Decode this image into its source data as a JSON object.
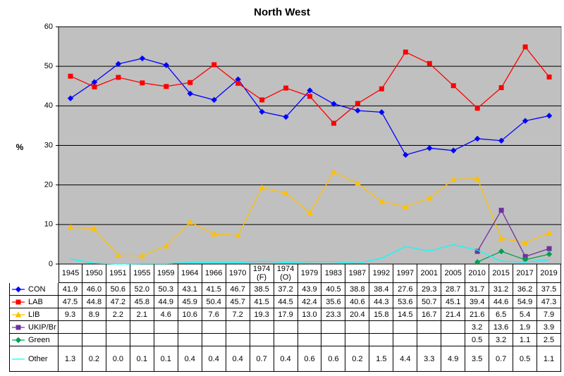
{
  "chart_data": {
    "type": "line",
    "title": "North West",
    "y_label": "%",
    "categories": [
      "1945",
      "1950",
      "1951",
      "1955",
      "1959",
      "1964",
      "1966",
      "1970",
      "1974\n(F)",
      "1974\n(O)",
      "1979",
      "1983",
      "1987",
      "1992",
      "1997",
      "2001",
      "2005",
      "2010",
      "2015",
      "2017",
      "2019"
    ],
    "ylim": [
      0,
      60
    ],
    "yticks": [
      0,
      10,
      20,
      30,
      40,
      50,
      60
    ],
    "grid": true,
    "background": "#c0c0c0",
    "series": [
      {
        "name": "CON",
        "color": "#0000ff",
        "marker": "diamond",
        "values": [
          41.9,
          46.0,
          50.6,
          52.0,
          50.3,
          43.1,
          41.5,
          46.7,
          38.5,
          37.2,
          43.9,
          40.5,
          38.8,
          38.4,
          27.6,
          29.3,
          28.7,
          31.7,
          31.2,
          36.2,
          37.5
        ],
        "value_labels": [
          "41.9",
          "46.0",
          "50.6",
          "52.0",
          "50.3",
          "43.1",
          "41.5",
          "46.7",
          "38.5",
          "37.2",
          "43.9",
          "40.5",
          "38.8",
          "38.4",
          "27.6",
          "29.3",
          "28.7",
          "31.7",
          "31.2",
          "36.2",
          "37.5"
        ]
      },
      {
        "name": "LAB",
        "color": "#ff0000",
        "marker": "square",
        "values": [
          47.5,
          44.8,
          47.2,
          45.8,
          44.9,
          45.9,
          50.4,
          45.7,
          41.5,
          44.5,
          42.4,
          35.6,
          40.6,
          44.3,
          53.6,
          50.7,
          45.1,
          39.4,
          44.6,
          54.9,
          47.3
        ],
        "value_labels": [
          "47.5",
          "44.8",
          "47.2",
          "45.8",
          "44.9",
          "45.9",
          "50.4",
          "45.7",
          "41.5",
          "44.5",
          "42.4",
          "35.6",
          "40.6",
          "44.3",
          "53.6",
          "50.7",
          "45.1",
          "39.4",
          "44.6",
          "54.9",
          "47.3"
        ]
      },
      {
        "name": "LIB",
        "color": "#ffc000",
        "marker": "triangle",
        "values": [
          9.3,
          8.9,
          2.2,
          2.1,
          4.6,
          10.6,
          7.6,
          7.2,
          19.3,
          17.9,
          13.0,
          23.3,
          20.4,
          15.8,
          14.5,
          16.7,
          21.4,
          21.6,
          6.5,
          5.4,
          7.9
        ],
        "value_labels": [
          "9.3",
          "8.9",
          "2.2",
          "2.1",
          "4.6",
          "10.6",
          "7.6",
          "7.2",
          "19.3",
          "17.9",
          "13.0",
          "23.3",
          "20.4",
          "15.8",
          "14.5",
          "16.7",
          "21.4",
          "21.6",
          "6.5",
          "5.4",
          "7.9"
        ]
      },
      {
        "name": "UKIP/Br",
        "color": "#7030a0",
        "marker": "square",
        "values": [
          null,
          null,
          null,
          null,
          null,
          null,
          null,
          null,
          null,
          null,
          null,
          null,
          null,
          null,
          null,
          null,
          null,
          3.2,
          13.6,
          1.9,
          3.9
        ],
        "value_labels": [
          null,
          null,
          null,
          null,
          null,
          null,
          null,
          null,
          null,
          null,
          null,
          null,
          null,
          null,
          null,
          null,
          null,
          "3.2",
          "13.6",
          "1.9",
          "3.9"
        ]
      },
      {
        "name": "Green",
        "color": "#00a050",
        "marker": "diamond",
        "values": [
          null,
          null,
          null,
          null,
          null,
          null,
          null,
          null,
          null,
          null,
          null,
          null,
          null,
          null,
          null,
          null,
          null,
          0.5,
          3.2,
          1.1,
          2.5
        ],
        "value_labels": [
          null,
          null,
          null,
          null,
          null,
          null,
          null,
          null,
          null,
          null,
          null,
          null,
          null,
          null,
          null,
          null,
          null,
          "0.5",
          "3.2",
          "1.1",
          "2.5"
        ]
      },
      {
        "name": "Other",
        "color": "#00ffff",
        "marker": "none",
        "values": [
          1.3,
          0.2,
          0.0,
          0.1,
          0.1,
          0.4,
          0.4,
          0.4,
          0.7,
          0.4,
          0.6,
          0.6,
          0.2,
          1.5,
          4.4,
          3.3,
          4.9,
          3.5,
          0.7,
          0.5,
          1.1
        ],
        "value_labels": [
          "1.3",
          "0.2",
          "0.0",
          "0.1",
          "0.1",
          "0.4",
          "0.4",
          "0.4",
          "0.7",
          "0.4",
          "0.6",
          "0.6",
          "0.2",
          "1.5",
          "4.4",
          "3.3",
          "4.9",
          "3.5",
          "0.7",
          "0.5",
          "1.1"
        ]
      }
    ]
  }
}
